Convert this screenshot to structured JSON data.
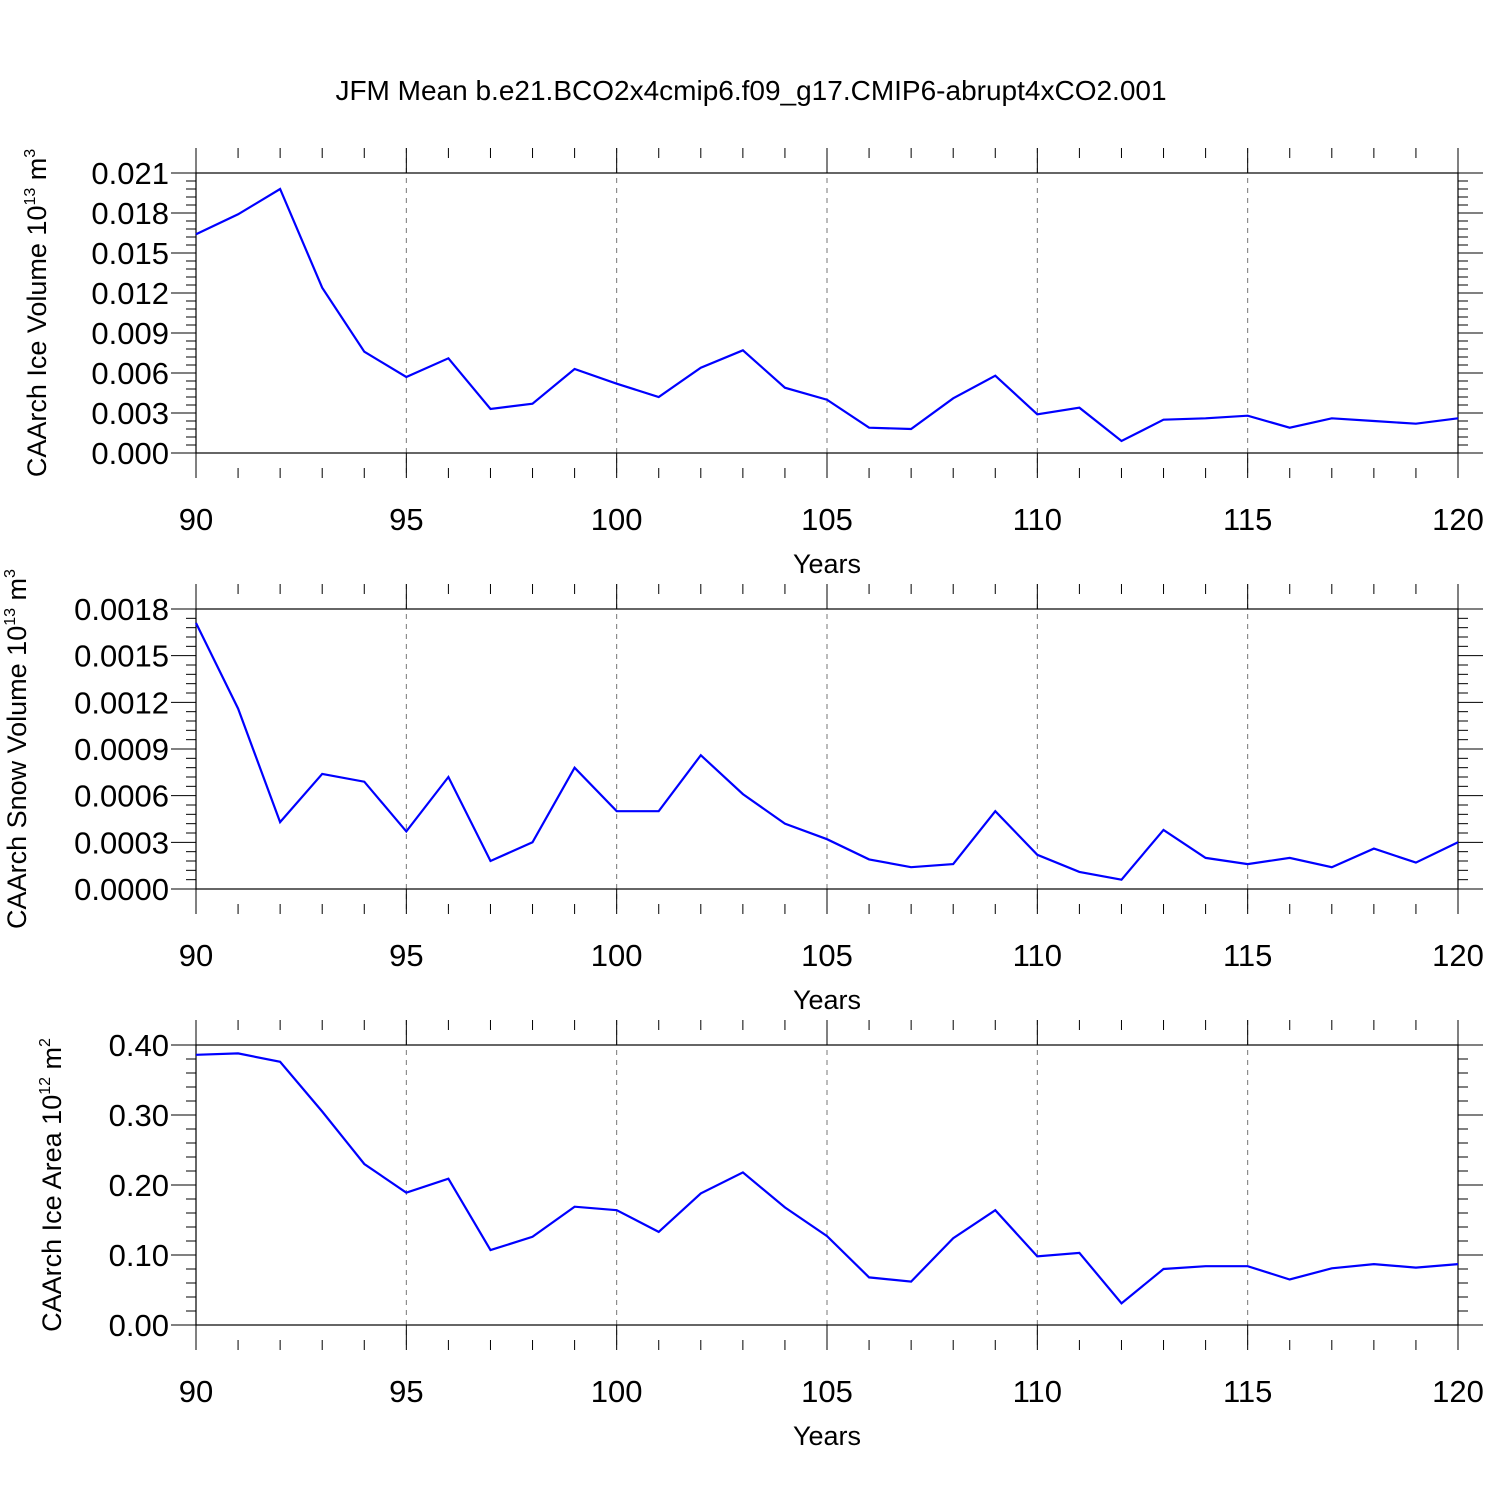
{
  "title": "JFM Mean b.e21.BCO2x4cmip6.f09_g17.CMIP6-abrupt4xCO2.001",
  "colors": {
    "series": "#0000ff",
    "axes": "#000000",
    "grid": "#777777"
  },
  "chart_data": [
    {
      "type": "line",
      "xlabel": "Years",
      "ylabel_parts": [
        "CAArch Ice Volume 10",
        "13",
        " m",
        "3"
      ],
      "xlim": [
        90,
        120
      ],
      "ylim": [
        0,
        0.021
      ],
      "xticks": [
        "90",
        "95",
        "100",
        "105",
        "110",
        "115",
        "120"
      ],
      "yticks": [
        "0.000",
        "0.003",
        "0.006",
        "0.009",
        "0.012",
        "0.015",
        "0.018",
        "0.021"
      ],
      "grid": "dashed vertical at major x ticks",
      "x": [
        90,
        91,
        92,
        93,
        94,
        95,
        96,
        97,
        98,
        99,
        100,
        101,
        102,
        103,
        104,
        105,
        106,
        107,
        108,
        109,
        110,
        111,
        112,
        113,
        114,
        115,
        116,
        117,
        118,
        119,
        120
      ],
      "values": [
        0.0164,
        0.0179,
        0.0198,
        0.0124,
        0.0076,
        0.0057,
        0.0071,
        0.0033,
        0.0037,
        0.0063,
        0.0052,
        0.0042,
        0.0064,
        0.0077,
        0.0049,
        0.004,
        0.0019,
        0.0018,
        0.0041,
        0.0058,
        0.0029,
        0.0034,
        0.0009,
        0.0025,
        0.0026,
        0.0028,
        0.0019,
        0.0026,
        0.0024,
        0.0022,
        0.0026
      ]
    },
    {
      "type": "line",
      "xlabel": "Years",
      "ylabel_parts": [
        "CAArch Snow Volume 10",
        "13",
        " m",
        "3"
      ],
      "xlim": [
        90,
        120
      ],
      "ylim": [
        0,
        0.0018
      ],
      "xticks": [
        "90",
        "95",
        "100",
        "105",
        "110",
        "115",
        "120"
      ],
      "yticks": [
        "0.0000",
        "0.0003",
        "0.0006",
        "0.0009",
        "0.0012",
        "0.0015",
        "0.0018"
      ],
      "grid": "dashed vertical at major x ticks",
      "x": [
        90,
        91,
        92,
        93,
        94,
        95,
        96,
        97,
        98,
        99,
        100,
        101,
        102,
        103,
        104,
        105,
        106,
        107,
        108,
        109,
        110,
        111,
        112,
        113,
        114,
        115,
        116,
        117,
        118,
        119,
        120
      ],
      "values": [
        0.00171,
        0.00116,
        0.00043,
        0.00074,
        0.00069,
        0.00037,
        0.00072,
        0.00018,
        0.0003,
        0.00078,
        0.0005,
        0.0005,
        0.00086,
        0.00061,
        0.00042,
        0.00032,
        0.00019,
        0.00014,
        0.00016,
        0.0005,
        0.00022,
        0.00011,
        6e-05,
        0.00038,
        0.0002,
        0.00016,
        0.0002,
        0.00014,
        0.00026,
        0.00017,
        0.0003
      ]
    },
    {
      "type": "line",
      "xlabel": "Years",
      "ylabel_parts": [
        "CAArch Ice Area 10",
        "12",
        " m",
        "2"
      ],
      "xlim": [
        90,
        120
      ],
      "ylim": [
        0,
        0.4
      ],
      "xticks": [
        "90",
        "95",
        "100",
        "105",
        "110",
        "115",
        "120"
      ],
      "yticks": [
        "0.00",
        "0.10",
        "0.20",
        "0.30",
        "0.40"
      ],
      "grid": "dashed vertical at major x ticks",
      "x": [
        90,
        91,
        92,
        93,
        94,
        95,
        96,
        97,
        98,
        99,
        100,
        101,
        102,
        103,
        104,
        105,
        106,
        107,
        108,
        109,
        110,
        111,
        112,
        113,
        114,
        115,
        116,
        117,
        118,
        119,
        120
      ],
      "values": [
        0.386,
        0.388,
        0.376,
        0.305,
        0.23,
        0.189,
        0.209,
        0.107,
        0.126,
        0.169,
        0.164,
        0.133,
        0.188,
        0.218,
        0.168,
        0.127,
        0.068,
        0.062,
        0.124,
        0.164,
        0.098,
        0.103,
        0.031,
        0.08,
        0.084,
        0.084,
        0.065,
        0.081,
        0.087,
        0.082,
        0.087
      ]
    }
  ]
}
